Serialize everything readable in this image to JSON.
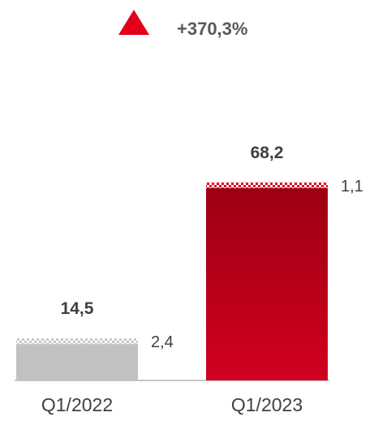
{
  "change": {
    "text": "+370,3%",
    "direction": "up",
    "icon": "up-triangle-icon",
    "color": "#e3001b"
  },
  "chart_data": {
    "type": "bar",
    "stacked": true,
    "categories": [
      "Q1/2022",
      "Q1/2023"
    ],
    "totals": [
      14.5,
      68.2
    ],
    "total_labels": [
      "14,5",
      "68,2"
    ],
    "cap_values": [
      2.4,
      1.1
    ],
    "cap_labels": [
      "2,4",
      "1,1"
    ],
    "colors": {
      "base": [
        "#c1c1c1",
        "#c8001e"
      ],
      "cap": [
        "#c8c8c8",
        "#e3001b"
      ]
    },
    "title": "",
    "xlabel": "",
    "ylabel": "",
    "ylim": [
      0,
      75
    ],
    "grid": false,
    "legend": "none"
  }
}
